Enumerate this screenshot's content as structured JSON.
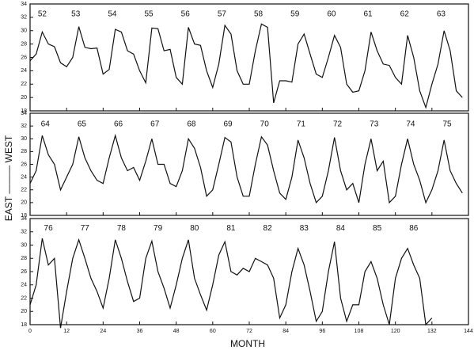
{
  "chart_data": [
    {
      "type": "line",
      "color": "#111111",
      "x": [
        0,
        2,
        4,
        6,
        8,
        10,
        12,
        14,
        16,
        18,
        20,
        22,
        24,
        26,
        28,
        30,
        32,
        34,
        36,
        38,
        40,
        42,
        44,
        46,
        48,
        50,
        52,
        54,
        56,
        58,
        60,
        62,
        64,
        66,
        68,
        70,
        72,
        74,
        76,
        78,
        80,
        82,
        84,
        86,
        88,
        90,
        92,
        94,
        96,
        98,
        100,
        102,
        104,
        106,
        108,
        110,
        112,
        114,
        116,
        118,
        120,
        122,
        124,
        126,
        128,
        130,
        132,
        134,
        136,
        138,
        140,
        142
      ],
      "values": [
        25.5,
        26.5,
        29.8,
        28,
        27.6,
        25.2,
        24.6,
        26,
        30.6,
        27.5,
        27.3,
        27.4,
        23.5,
        24.2,
        30.2,
        29.8,
        27,
        26.5,
        24,
        22.2,
        30.4,
        30.3,
        27,
        27.2,
        23,
        22,
        30.5,
        28,
        27.8,
        24,
        21.5,
        25,
        30.8,
        29.5,
        24,
        22,
        22,
        27,
        31,
        30.5,
        19.2,
        22.5,
        22.5,
        22.3,
        28,
        29.5,
        26.5,
        23.5,
        23,
        26,
        29.3,
        27.5,
        22,
        20.8,
        21,
        24,
        29.8,
        27,
        25,
        24.8,
        23,
        22,
        29.3,
        26,
        21,
        18.5,
        22,
        25,
        30,
        27,
        21,
        20
      ],
      "xlim": [
        0,
        144
      ],
      "xticks": [
        0,
        12,
        24,
        36,
        48,
        60,
        72,
        84,
        96,
        108,
        120,
        132,
        144
      ],
      "ylim": [
        18,
        34
      ],
      "yticks": [
        18,
        20,
        22,
        24,
        26,
        28,
        30,
        32,
        34
      ],
      "annotations": [
        {
          "text": "52",
          "x": 4,
          "y": 32.5
        },
        {
          "text": "53",
          "x": 15,
          "y": 32.5
        },
        {
          "text": "54",
          "x": 27,
          "y": 32.5
        },
        {
          "text": "55",
          "x": 39,
          "y": 32.5
        },
        {
          "text": "56",
          "x": 51,
          "y": 32.5
        },
        {
          "text": "57",
          "x": 63,
          "y": 32.5
        },
        {
          "text": "58",
          "x": 75,
          "y": 32.5
        },
        {
          "text": "59",
          "x": 87,
          "y": 32.5
        },
        {
          "text": "60",
          "x": 99,
          "y": 32.5
        },
        {
          "text": "61",
          "x": 111,
          "y": 32.5
        },
        {
          "text": "62",
          "x": 123,
          "y": 32.5
        },
        {
          "text": "63",
          "x": 135,
          "y": 32.5
        }
      ]
    },
    {
      "type": "line",
      "color": "#111111",
      "ylabel": "EAST ——— WEST",
      "x": [
        0,
        2,
        4,
        6,
        8,
        10,
        12,
        14,
        16,
        18,
        20,
        22,
        24,
        26,
        28,
        30,
        32,
        34,
        36,
        38,
        40,
        42,
        44,
        46,
        48,
        50,
        52,
        54,
        56,
        58,
        60,
        62,
        64,
        66,
        68,
        70,
        72,
        74,
        76,
        78,
        80,
        82,
        84,
        86,
        88,
        90,
        92,
        94,
        96,
        98,
        100,
        102,
        104,
        106,
        108,
        110,
        112,
        114,
        116,
        118,
        120,
        122,
        124,
        126,
        128,
        130,
        132,
        134,
        136,
        138,
        140,
        142
      ],
      "values": [
        23,
        25,
        30.5,
        27.5,
        26,
        22,
        24,
        26,
        30.3,
        27,
        25,
        23.5,
        23,
        27,
        30.5,
        27,
        25,
        25.5,
        23.5,
        26.5,
        30,
        26,
        26,
        23,
        22.5,
        25,
        30,
        28.5,
        25.5,
        21,
        22,
        26,
        30.2,
        29.5,
        24,
        21,
        21,
        26,
        30.3,
        29,
        25,
        21.5,
        20.5,
        24,
        29.8,
        27,
        23,
        20,
        21,
        25,
        30.2,
        25,
        22,
        23,
        20,
        26,
        30,
        25,
        26.5,
        20,
        21,
        26,
        30,
        26,
        23.5,
        20,
        22,
        25,
        29.8,
        25,
        23,
        21.5
      ],
      "xlim": [
        0,
        144
      ],
      "xticks": [
        0,
        12,
        24,
        36,
        48,
        60,
        72,
        84,
        96,
        108,
        120,
        132,
        144
      ],
      "ylim": [
        18,
        34
      ],
      "yticks": [
        18,
        20,
        22,
        24,
        26,
        28,
        30,
        32,
        34
      ],
      "annotations": [
        {
          "text": "64",
          "x": 5,
          "y": 32.3
        },
        {
          "text": "65",
          "x": 17,
          "y": 32.3
        },
        {
          "text": "66",
          "x": 29,
          "y": 32.3
        },
        {
          "text": "67",
          "x": 41,
          "y": 32.3
        },
        {
          "text": "68",
          "x": 53,
          "y": 32.3
        },
        {
          "text": "69",
          "x": 65,
          "y": 32.3
        },
        {
          "text": "70",
          "x": 77,
          "y": 32.3
        },
        {
          "text": "71",
          "x": 89,
          "y": 32.3
        },
        {
          "text": "72",
          "x": 101,
          "y": 32.3
        },
        {
          "text": "73",
          "x": 113,
          "y": 32.3
        },
        {
          "text": "74",
          "x": 125,
          "y": 32.3
        },
        {
          "text": "75",
          "x": 137,
          "y": 32.3
        }
      ]
    },
    {
      "type": "line",
      "color": "#111111",
      "xlabel": "MONTH",
      "x": [
        0,
        2,
        4,
        6,
        8,
        10,
        12,
        14,
        16,
        18,
        20,
        22,
        24,
        26,
        28,
        30,
        32,
        34,
        36,
        38,
        40,
        42,
        44,
        46,
        48,
        50,
        52,
        54,
        56,
        58,
        60,
        62,
        64,
        66,
        68,
        70,
        72,
        74,
        76,
        78,
        80,
        82,
        84,
        86,
        88,
        90,
        92,
        94,
        96,
        98,
        100,
        102,
        104,
        106,
        108,
        110,
        112,
        114,
        116,
        118,
        120,
        122,
        124,
        126,
        128,
        130,
        132
      ],
      "values": [
        21,
        24,
        31,
        27,
        28,
        17.5,
        23,
        28,
        30.8,
        28,
        25,
        23,
        20.5,
        25,
        30.8,
        28,
        24.5,
        21.5,
        22,
        28,
        30.6,
        26,
        23.5,
        20.5,
        24,
        28,
        30.8,
        25,
        22.5,
        20.2,
        24,
        28.5,
        30.5,
        26,
        25.5,
        26.5,
        26,
        28,
        27.5,
        27,
        25,
        19,
        21,
        26,
        29.5,
        27,
        23,
        18.5,
        20,
        26,
        30.5,
        22,
        18.5,
        21,
        21,
        26,
        27.5,
        25,
        21,
        18,
        25,
        28,
        29.5,
        27,
        25,
        18,
        19
      ],
      "xlim": [
        0,
        144
      ],
      "xticks": [
        0,
        12,
        24,
        36,
        48,
        60,
        72,
        84,
        96,
        108,
        120,
        132,
        144
      ],
      "ylim": [
        18,
        34
      ],
      "yticks": [
        18,
        20,
        22,
        24,
        26,
        28,
        30,
        32,
        34
      ],
      "annotations": [
        {
          "text": "76",
          "x": 6,
          "y": 32.5
        },
        {
          "text": "77",
          "x": 18,
          "y": 32.5
        },
        {
          "text": "78",
          "x": 30,
          "y": 32.5
        },
        {
          "text": "79",
          "x": 42,
          "y": 32.5
        },
        {
          "text": "80",
          "x": 54,
          "y": 32.5
        },
        {
          "text": "81",
          "x": 66,
          "y": 32.5
        },
        {
          "text": "82",
          "x": 78,
          "y": 32.5
        },
        {
          "text": "83",
          "x": 90,
          "y": 32.5
        },
        {
          "text": "84",
          "x": 102,
          "y": 32.5
        },
        {
          "text": "85",
          "x": 114,
          "y": 32.5
        },
        {
          "text": "86",
          "x": 126,
          "y": 32.5
        }
      ]
    }
  ]
}
